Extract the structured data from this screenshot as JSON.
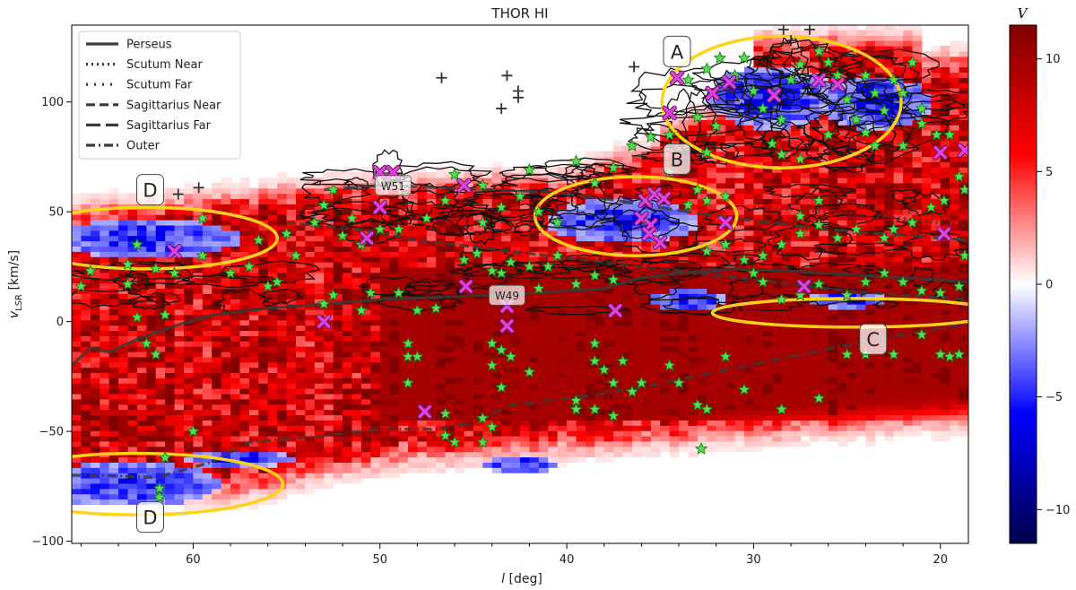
{
  "chart_data": {
    "type": "heatmap",
    "title": "THOR HI",
    "xlabel_italic": "l",
    "xlabel_rest": " [deg]",
    "ylabel_main": "v",
    "ylabel_sub": "LSR",
    "ylabel_rest": " [km/s]",
    "xlim": [
      66.5,
      18.5
    ],
    "ylim": [
      -101,
      135
    ],
    "xticks": [
      60,
      50,
      40,
      30,
      20
    ],
    "yticks": [
      -100,
      -50,
      0,
      50,
      100
    ],
    "colorbar": {
      "label": "V",
      "range": [
        -11.5,
        11.5
      ],
      "ticks": [
        10,
        5,
        0,
        -5,
        -10
      ],
      "colormap": "seismic",
      "colors": {
        "low": "#00004c",
        "mid": "#ffffff",
        "high": "#800000"
      }
    },
    "legend": {
      "position": "top-left",
      "entries": [
        {
          "name": "Perseus",
          "style": "solid"
        },
        {
          "name": "Scutum Near",
          "style": "dotted"
        },
        {
          "name": "Scutum Far",
          "style": "dotted-sparse"
        },
        {
          "name": "Sagittarius Near",
          "style": "dashed"
        },
        {
          "name": "Sagittarius Far",
          "style": "long-dashed"
        },
        {
          "name": "Outer",
          "style": "dash-dot"
        }
      ]
    },
    "arms": [
      {
        "name": "Perseus",
        "style": "solid",
        "points": [
          [
            66.5,
            -20
          ],
          [
            65.5,
            -12
          ],
          [
            64.5,
            -14
          ],
          [
            63,
            -8
          ],
          [
            61,
            -2
          ],
          [
            59,
            3
          ],
          [
            56,
            6
          ],
          [
            53,
            8
          ],
          [
            50,
            10
          ],
          [
            47,
            11
          ],
          [
            44,
            12
          ],
          [
            42,
            13
          ],
          [
            40,
            14
          ],
          [
            38,
            15
          ],
          [
            36,
            20
          ],
          [
            34,
            22
          ],
          [
            31,
            24
          ],
          [
            28,
            23
          ],
          [
            24,
            21
          ],
          [
            20,
            19
          ],
          [
            18.5,
            18
          ]
        ]
      },
      {
        "name": "Scutum Near",
        "style": "dotted",
        "points": [
          [
            30,
            52
          ],
          [
            26,
            50
          ],
          [
            22,
            47
          ],
          [
            19,
            44
          ],
          [
            18.5,
            43
          ]
        ]
      },
      {
        "name": "Scutum Far",
        "style": "dotted-sparse",
        "points": [
          [
            29,
            58
          ],
          [
            25,
            54
          ],
          [
            21,
            49
          ],
          [
            18.5,
            46
          ]
        ]
      },
      {
        "name": "Sagittarius Near",
        "style": "dashed",
        "points": [
          [
            55,
            45
          ],
          [
            51,
            42
          ],
          [
            48,
            37
          ],
          [
            44,
            33
          ],
          [
            40,
            29
          ],
          [
            37,
            26
          ],
          [
            34,
            23
          ],
          [
            31,
            20
          ],
          [
            28,
            17
          ],
          [
            25,
            14
          ],
          [
            22,
            12
          ],
          [
            18.5,
            10
          ]
        ]
      },
      {
        "name": "Sagittarius Far",
        "style": "long-dashed",
        "points": [
          [
            53,
            60
          ],
          [
            50,
            62
          ],
          [
            47,
            61
          ],
          [
            44,
            60
          ],
          [
            41,
            59
          ],
          [
            38,
            56
          ],
          [
            35,
            52
          ],
          [
            32,
            48
          ],
          [
            29,
            45
          ],
          [
            26,
            42
          ],
          [
            23,
            40
          ],
          [
            20,
            38
          ],
          [
            18.5,
            37
          ]
        ]
      },
      {
        "name": "Outer",
        "style": "dash-dot",
        "points": [
          [
            66.5,
            -70
          ],
          [
            65,
            -70
          ],
          [
            62,
            -71
          ],
          [
            59,
            -64
          ],
          [
            57,
            -55
          ],
          [
            53,
            -52
          ],
          [
            50,
            -49
          ],
          [
            47,
            -49
          ],
          [
            45,
            -46
          ],
          [
            43,
            -38
          ],
          [
            40,
            -35
          ],
          [
            36,
            -30
          ],
          [
            32,
            -23
          ],
          [
            28,
            -16
          ],
          [
            24,
            -9
          ],
          [
            20,
            -3
          ],
          [
            18.5,
            -1
          ]
        ]
      }
    ],
    "regions": [
      {
        "label": "A",
        "l": 28.5,
        "v": 100,
        "rl": 6.4,
        "rv": 30,
        "label_l": 34.1,
        "label_v": 123
      },
      {
        "label": "B",
        "l": 36.3,
        "v": 48,
        "rl": 5.4,
        "rv": 18,
        "label_l": 34.1,
        "label_v": 74
      },
      {
        "label": "C",
        "l": 24.6,
        "v": 4,
        "rl": 7.6,
        "rv": 6.5,
        "label_l": 23.6,
        "label_v": -8
      },
      {
        "label": "D",
        "l": 62.5,
        "v": 38,
        "rl": 7,
        "rv": 14,
        "label_l": 62.3,
        "label_v": 60
      },
      {
        "label": "D",
        "l": 63.0,
        "v": -74,
        "rl": 7.8,
        "rv": 14,
        "label_l": 62.3,
        "label_v": -89
      }
    ],
    "annotations": [
      {
        "text": "W51",
        "l": 49.3,
        "v": 62
      },
      {
        "text": "W49",
        "l": 43.2,
        "v": 12
      }
    ],
    "plus_markers": [
      [
        46.7,
        111
      ],
      [
        43.2,
        112
      ],
      [
        42.6,
        105
      ],
      [
        42.6,
        102
      ],
      [
        43.5,
        97
      ],
      [
        36.4,
        116
      ],
      [
        28.4,
        133
      ],
      [
        28.0,
        128
      ],
      [
        27.0,
        133
      ],
      [
        60.8,
        58
      ],
      [
        59.7,
        61
      ]
    ],
    "x_markers": [
      [
        50.0,
        68
      ],
      [
        49.3,
        68
      ],
      [
        50.0,
        52
      ],
      [
        45.5,
        62
      ],
      [
        50.7,
        38
      ],
      [
        61.0,
        32
      ],
      [
        45.4,
        16
      ],
      [
        53.0,
        0
      ],
      [
        43.2,
        7
      ],
      [
        43.2,
        -2
      ],
      [
        47.6,
        -41
      ],
      [
        37.4,
        5
      ],
      [
        35.8,
        55
      ],
      [
        35.3,
        58
      ],
      [
        34.8,
        56
      ],
      [
        36.0,
        47
      ],
      [
        35.5,
        44
      ],
      [
        35.6,
        40
      ],
      [
        35.0,
        36
      ],
      [
        31.5,
        45
      ],
      [
        34.1,
        111
      ],
      [
        32.2,
        104
      ],
      [
        31.3,
        109
      ],
      [
        28.9,
        103
      ],
      [
        26.5,
        110
      ],
      [
        25.5,
        108
      ],
      [
        34.5,
        95
      ],
      [
        27.3,
        16
      ],
      [
        19.8,
        40
      ],
      [
        20.0,
        77
      ],
      [
        18.7,
        78
      ]
    ],
    "stars": [
      [
        62.5,
        -10
      ],
      [
        62,
        -15
      ],
      [
        61.5,
        -62
      ],
      [
        61.8,
        -76
      ],
      [
        61.8,
        -80
      ],
      [
        60,
        -50
      ],
      [
        63,
        2
      ],
      [
        61.5,
        3
      ],
      [
        59.5,
        47
      ],
      [
        59.5,
        30
      ],
      [
        63.5,
        26
      ],
      [
        65.5,
        23
      ],
      [
        62,
        24
      ],
      [
        61,
        22
      ],
      [
        63.5,
        17
      ],
      [
        56.5,
        37
      ],
      [
        54.5,
        30
      ],
      [
        55,
        40
      ],
      [
        53.5,
        45
      ],
      [
        52.5,
        60
      ],
      [
        53,
        53
      ],
      [
        52,
        39
      ],
      [
        51.5,
        47
      ],
      [
        51,
        35
      ],
      [
        50,
        42
      ],
      [
        49,
        42
      ],
      [
        52.5,
        12
      ],
      [
        53,
        8
      ],
      [
        51,
        5
      ],
      [
        50.5,
        13
      ],
      [
        49,
        13
      ],
      [
        48,
        5
      ],
      [
        47,
        6
      ],
      [
        48.5,
        -16
      ],
      [
        48,
        -16
      ],
      [
        48.5,
        -28
      ],
      [
        48.5,
        -10
      ],
      [
        46.5,
        -42
      ],
      [
        46,
        -55
      ],
      [
        46.5,
        -52
      ],
      [
        44.5,
        -44
      ],
      [
        44.5,
        -55
      ],
      [
        44,
        -48
      ],
      [
        43.5,
        -30
      ],
      [
        44,
        -10
      ],
      [
        43,
        -16
      ],
      [
        44,
        -20
      ],
      [
        43.5,
        -13
      ],
      [
        42,
        -23
      ],
      [
        45.5,
        28
      ],
      [
        44.8,
        31
      ],
      [
        44,
        23
      ],
      [
        43.5,
        22
      ],
      [
        43,
        27
      ],
      [
        42,
        25
      ],
      [
        41,
        25
      ],
      [
        40.5,
        30
      ],
      [
        41.5,
        15
      ],
      [
        39.5,
        17
      ],
      [
        38.5,
        21
      ],
      [
        37.5,
        19
      ],
      [
        40.5,
        45
      ],
      [
        41.5,
        50
      ],
      [
        42.5,
        57
      ],
      [
        43.5,
        52
      ],
      [
        44.5,
        45
      ],
      [
        46.5,
        55
      ],
      [
        47.5,
        47
      ],
      [
        46,
        67
      ],
      [
        44.5,
        62
      ],
      [
        42,
        69
      ],
      [
        38.5,
        63
      ],
      [
        39.5,
        73
      ],
      [
        37.5,
        70
      ],
      [
        36.5,
        80
      ],
      [
        35.5,
        84
      ],
      [
        34.5,
        85
      ],
      [
        34.5,
        68
      ],
      [
        32.5,
        77
      ],
      [
        33,
        60
      ],
      [
        32.5,
        55
      ],
      [
        33.5,
        53
      ],
      [
        31.5,
        57
      ],
      [
        38.5,
        -10
      ],
      [
        38.5,
        -18
      ],
      [
        38,
        -22
      ],
      [
        37.5,
        -28
      ],
      [
        36.5,
        -32
      ],
      [
        39.5,
        -36
      ],
      [
        38.5,
        -40
      ],
      [
        37.5,
        -43
      ],
      [
        39.5,
        -40
      ],
      [
        34.5,
        -20
      ],
      [
        33,
        -38
      ],
      [
        32.5,
        -40
      ],
      [
        31.5,
        -16
      ],
      [
        32.8,
        -58
      ],
      [
        30.5,
        -31
      ],
      [
        28.5,
        -40
      ],
      [
        26.5,
        -35
      ],
      [
        25,
        -15
      ],
      [
        24,
        -15
      ],
      [
        22.5,
        -15
      ],
      [
        21,
        -6
      ],
      [
        20,
        -15
      ],
      [
        19.5,
        -16
      ],
      [
        19,
        -15
      ],
      [
        33.5,
        110
      ],
      [
        32.5,
        115
      ],
      [
        31.8,
        120
      ],
      [
        31,
        112
      ],
      [
        30.5,
        120
      ],
      [
        30,
        105
      ],
      [
        29.5,
        97
      ],
      [
        28.5,
        92
      ],
      [
        28,
        110
      ],
      [
        27.5,
        117
      ],
      [
        26.5,
        123
      ],
      [
        26,
        118
      ],
      [
        25.5,
        112
      ],
      [
        25,
        101
      ],
      [
        24.5,
        92
      ],
      [
        24,
        112
      ],
      [
        23.5,
        104
      ],
      [
        23,
        96
      ],
      [
        22.5,
        110
      ],
      [
        22,
        104
      ],
      [
        21.5,
        118
      ],
      [
        21,
        97
      ],
      [
        33,
        93
      ],
      [
        32,
        89
      ],
      [
        29,
        81
      ],
      [
        28.5,
        76
      ],
      [
        27.5,
        74
      ],
      [
        26,
        85
      ],
      [
        24,
        86
      ],
      [
        23.5,
        80
      ],
      [
        22,
        80
      ],
      [
        21,
        90
      ],
      [
        20.2,
        85
      ],
      [
        19.5,
        85
      ],
      [
        19,
        66
      ],
      [
        18.7,
        60
      ],
      [
        19.8,
        55
      ],
      [
        20.5,
        52
      ],
      [
        21.5,
        45
      ],
      [
        22.5,
        42
      ],
      [
        23,
        38
      ],
      [
        24.5,
        42
      ],
      [
        25.5,
        38
      ],
      [
        26.5,
        55
      ],
      [
        27.5,
        48
      ],
      [
        26.5,
        44
      ],
      [
        27.5,
        40
      ],
      [
        28.5,
        35
      ],
      [
        29.5,
        30
      ],
      [
        30.5,
        28
      ],
      [
        31.5,
        35
      ],
      [
        32.5,
        32
      ],
      [
        30,
        22
      ],
      [
        29.5,
        18
      ],
      [
        28.5,
        10
      ],
      [
        27.5,
        12
      ],
      [
        26.5,
        17
      ],
      [
        25,
        12
      ],
      [
        24,
        18
      ],
      [
        23,
        22
      ],
      [
        22,
        18
      ],
      [
        21,
        14
      ],
      [
        20,
        13
      ],
      [
        19,
        16
      ],
      [
        18.7,
        30
      ],
      [
        34,
        -28
      ],
      [
        36,
        -28
      ],
      [
        37,
        -18
      ],
      [
        56,
        16
      ],
      [
        57,
        25
      ],
      [
        55.5,
        18
      ],
      [
        58,
        22
      ],
      [
        63,
        35
      ],
      [
        66,
        16
      ]
    ],
    "source_labels": [
      "W51",
      "W49"
    ]
  }
}
